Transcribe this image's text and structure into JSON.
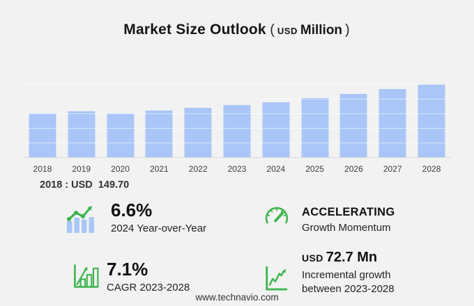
{
  "title": {
    "text": "Market Size Outlook",
    "open_paren": "(",
    "currency": "USD",
    "unit": "Million",
    "close_paren": ")"
  },
  "chart_data": {
    "type": "bar",
    "title": "Market Size Outlook (USD Million)",
    "unit": "USD Million",
    "categories": [
      "2018",
      "2019",
      "2020",
      "2021",
      "2022",
      "2023",
      "2024",
      "2025",
      "2026",
      "2027",
      "2028"
    ],
    "values": [
      149.7,
      158.0,
      150.1,
      158.5,
      168.0,
      177.7,
      189.4,
      202.0,
      216.1,
      232.9,
      250.4
    ],
    "ylim": [
      0,
      300
    ],
    "gridline_step": 50,
    "grid": "horizontal gridlines only, no y-axis tick labels",
    "legend": "none",
    "bar_color": "#aac6f8"
  },
  "annotation": {
    "text": "2018 : USD  149.70"
  },
  "stats": {
    "yoy": {
      "value": "6.6%",
      "label": "2024 Year-over-Year",
      "icon": "bar-line-growth-icon"
    },
    "momentum": {
      "value": "ACCELERATING",
      "label": "Growth Momentum",
      "icon": "speedometer-icon"
    },
    "cagr": {
      "value": "7.1%",
      "label": "CAGR 2023-2028",
      "icon": "outlined-bar-growth-icon"
    },
    "incremental": {
      "currency": "USD",
      "value": "72.7 Mn",
      "label": "Incremental growth between 2023-2028",
      "icon": "line-chart-growth-icon"
    }
  },
  "footer": {
    "website": "www.technavio.com"
  },
  "colors": {
    "background": "#f2f2f2",
    "bar": "#aac6f8",
    "accent_green": "#3cb54b",
    "gridline": "rgba(255,255,255,0.55)",
    "baseline": "#d9d9d9",
    "title_text": "#161616",
    "body_text": "#222222"
  }
}
